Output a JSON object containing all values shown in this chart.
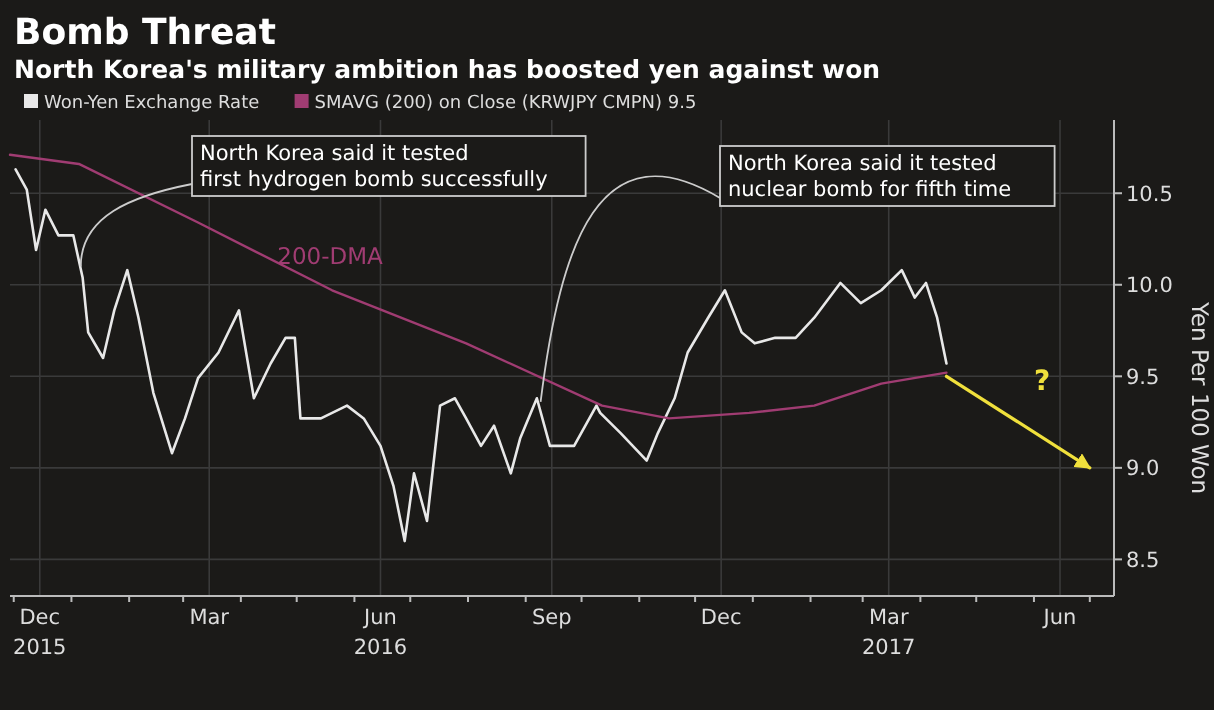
{
  "chart_data": {
    "type": "line",
    "title": "Bomb Threat",
    "subtitle": "North Korea's military ambition has boosted yen against won",
    "ylabel": "Yen Per 100 Won",
    "xlim": [
      "2015-11-29",
      "2017-07-14"
    ],
    "ylim": [
      8.3,
      10.9
    ],
    "xticks": [
      {
        "value": "2015-12-15",
        "label": "Dec\n2015"
      },
      {
        "value": "2016-03-15",
        "label": "Mar"
      },
      {
        "value": "2016-06-15",
        "label": "Jun\n2016"
      },
      {
        "value": "2016-09-15",
        "label": "Sep"
      },
      {
        "value": "2016-12-15",
        "label": "Dec"
      },
      {
        "value": "2017-03-15",
        "label": "Mar\n2017"
      },
      {
        "value": "2017-06-15",
        "label": "Jun"
      }
    ],
    "yticks": [
      8.5,
      {
        "value": 9,
        "label": "9.0"
      },
      9.5,
      {
        "value": 10,
        "label": "10.0"
      },
      10.5
    ],
    "grid": true,
    "legend": "top left",
    "series": [
      {
        "name": "Won-Yen Exchange Rate",
        "color": "#e8e8e8",
        "x": [
          "2015-12-02",
          "2015-12-08",
          "2015-12-13",
          "2015-12-18",
          "2015-12-25",
          "2016-01-02",
          "2016-01-07",
          "2016-01-10",
          "2016-01-18",
          "2016-01-24",
          "2016-01-31",
          "2016-02-06",
          "2016-02-14",
          "2016-02-24",
          "2016-03-02",
          "2016-03-09",
          "2016-03-20",
          "2016-03-31",
          "2016-04-08",
          "2016-04-17",
          "2016-04-25",
          "2016-04-30",
          "2016-05-03",
          "2016-05-14",
          "2016-05-28",
          "2016-06-06",
          "2016-06-15",
          "2016-06-22",
          "2016-06-28",
          "2016-07-03",
          "2016-07-10",
          "2016-07-17",
          "2016-07-25",
          "2016-07-31",
          "2016-08-08",
          "2016-08-15",
          "2016-08-24",
          "2016-08-29",
          "2016-09-07",
          "2016-09-14",
          "2016-09-27",
          "2016-10-09",
          "2016-10-11",
          "2016-10-22",
          "2016-11-05",
          "2016-11-11",
          "2016-11-20",
          "2016-11-27",
          "2016-12-08",
          "2016-12-17",
          "2016-12-26",
          "2017-01-02",
          "2017-01-13",
          "2017-01-24",
          "2017-02-03",
          "2017-02-17",
          "2017-02-28",
          "2017-03-11",
          "2017-03-22",
          "2017-03-29",
          "2017-04-04",
          "2017-04-10",
          "2017-04-15"
        ],
        "values": [
          10.63,
          10.52,
          10.19,
          10.41,
          10.27,
          10.27,
          10.04,
          9.74,
          9.6,
          9.86,
          10.08,
          9.82,
          9.41,
          9.08,
          9.27,
          9.49,
          9.63,
          9.86,
          9.38,
          9.57,
          9.71,
          9.71,
          9.27,
          9.27,
          9.34,
          9.27,
          9.12,
          8.9,
          8.6,
          8.97,
          8.71,
          9.34,
          9.38,
          9.27,
          9.12,
          9.23,
          8.97,
          9.16,
          9.38,
          9.12,
          9.12,
          9.34,
          9.3,
          9.19,
          9.04,
          9.19,
          9.38,
          9.63,
          9.82,
          9.97,
          9.74,
          9.68,
          9.71,
          9.71,
          9.82,
          10.01,
          9.9,
          9.97,
          10.08,
          9.93,
          10.01,
          9.82,
          9.57
        ]
      },
      {
        "name": "SMAVG (200) on Close (KRWJPY CMPN) 9.5",
        "color": "#a03c72",
        "x": [
          "2015-11-29",
          "2016-01-05",
          "2016-03-09",
          "2016-05-20",
          "2016-07-31",
          "2016-10-12",
          "2016-11-17",
          "2016-12-30",
          "2017-02-03",
          "2017-03-11",
          "2017-04-15"
        ],
        "values": [
          10.71,
          10.66,
          10.34,
          9.97,
          9.68,
          9.34,
          9.27,
          9.3,
          9.34,
          9.46,
          9.52
        ]
      },
      {
        "color": "#f0e03c",
        "x": [
          "2017-04-15",
          "2017-07-01"
        ],
        "values": [
          9.5,
          9.0
        ]
      }
    ],
    "annotations": [
      {
        "text": "North Korea said it tested\nfirst hydrogen bomb successfully",
        "x": "2016-01-06",
        "y": 10.1
      },
      {
        "text": "North Korea said it tested\nnuclear bomb for fifth time",
        "x": "2016-09-09",
        "y": 9.36
      },
      "200-DMA",
      "?"
    ]
  }
}
